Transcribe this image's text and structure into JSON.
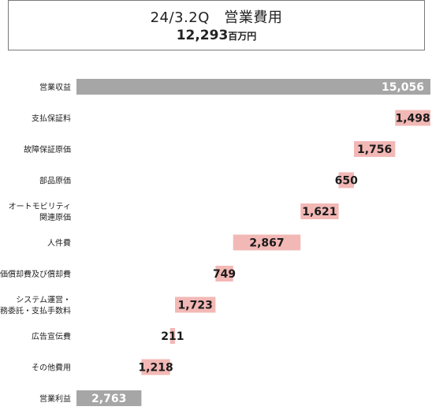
{
  "header": {
    "title": "24/3.2Q　営業費用",
    "total_value": "12,293",
    "total_unit": "百万円"
  },
  "chart_data": {
    "type": "bar",
    "subtype": "waterfall",
    "orientation": "horizontal",
    "categories": [
      [
        "営業収益"
      ],
      [
        "支払保証料"
      ],
      [
        "故障保証原価"
      ],
      [
        "部品原価"
      ],
      [
        "オートモビリティ",
        "関連原価"
      ],
      [
        "人件費"
      ],
      [
        "減価償却費及び償却費"
      ],
      [
        "システム運営・",
        "業務委託・支払手数料"
      ],
      [
        "広告宣伝費"
      ],
      [
        "その他費用"
      ],
      [
        "営業利益"
      ]
    ],
    "values": [
      15056,
      1498,
      1756,
      650,
      1621,
      2867,
      749,
      1723,
      211,
      1218,
      2763
    ],
    "value_labels": [
      "15,056",
      "1,498",
      "1,756",
      "650",
      "1,621",
      "2,867",
      "749",
      "1,723",
      "211",
      "1,218",
      "2,763"
    ],
    "kinds": [
      "total",
      "expense",
      "expense",
      "expense",
      "expense",
      "expense",
      "expense",
      "expense",
      "expense",
      "expense",
      "total"
    ],
    "xlim": [
      0,
      15056
    ],
    "grid": false,
    "legend": "none",
    "colors": {
      "total": "#a6a6a6",
      "expense": "#f2b8b5",
      "total_label": "#ffffff",
      "expense_label": "#1a1a1a"
    }
  }
}
